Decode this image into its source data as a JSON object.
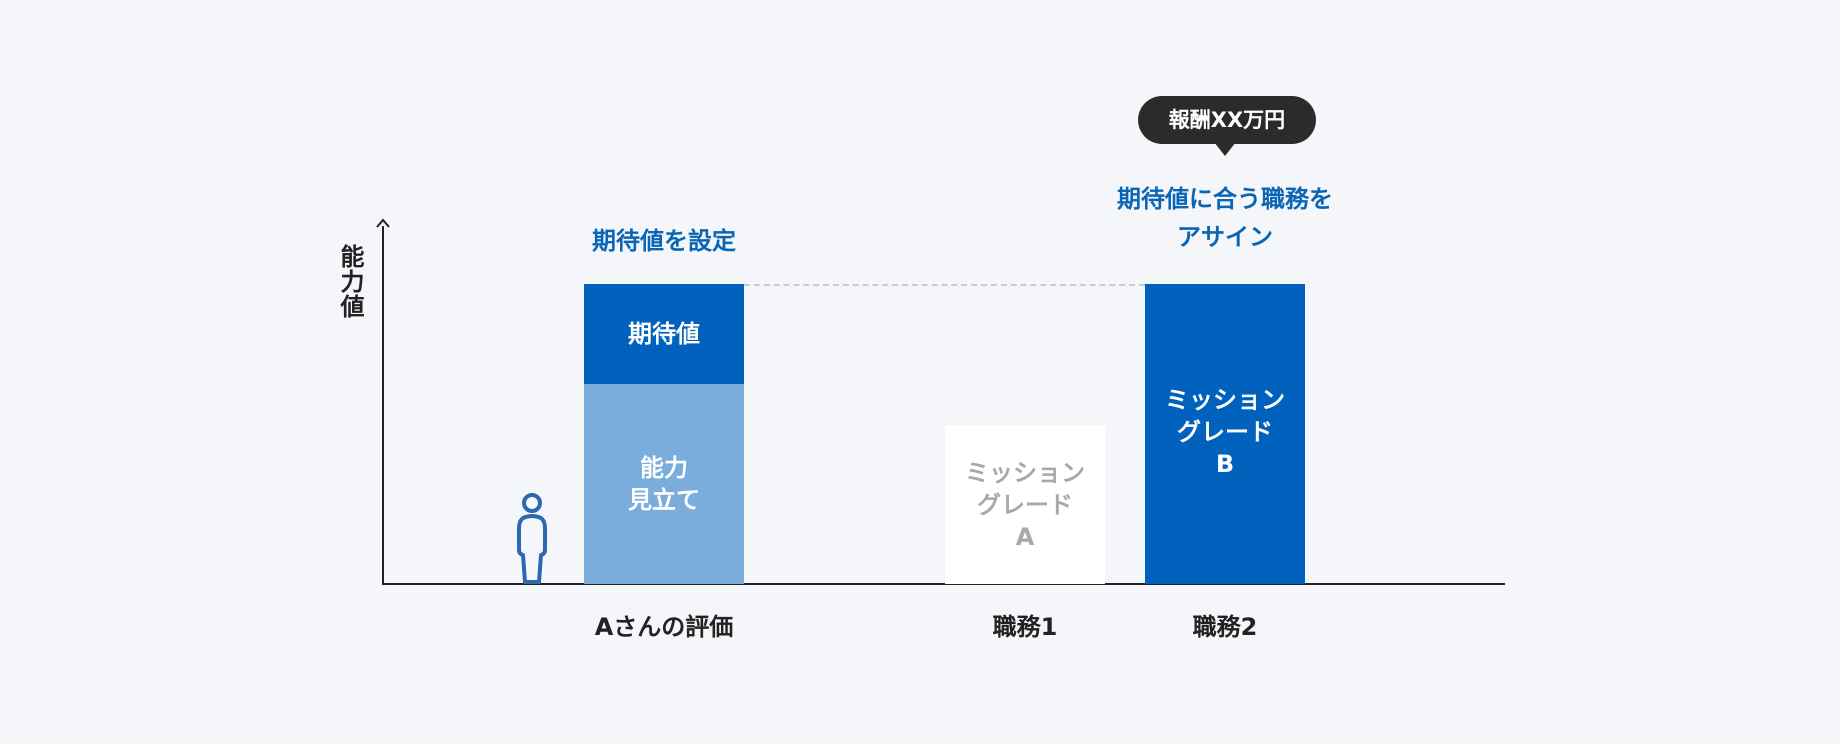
{
  "y_axis": {
    "label": "能力値"
  },
  "bubble": {
    "text": "報酬XX万円"
  },
  "headings": {
    "left": "期待値を設定",
    "right": "期待値に合う職務を\nアサイン"
  },
  "bars": {
    "expected": "期待値",
    "ability": "能力\n見立て",
    "grade_a": "ミッション\nグレード\nA",
    "grade_b": "ミッション\nグレード\nB"
  },
  "x_labels": {
    "a_eval": "Aさんの評価",
    "job1": "職務1",
    "job2": "職務2"
  },
  "colors": {
    "primary_blue": "#0062bd",
    "light_blue": "#7aaddc",
    "heading_blue": "#0a66b5",
    "bubble_dark": "#2b2b2b",
    "person_icon": "#2e67b1"
  },
  "icons": {
    "person": "person-icon"
  }
}
